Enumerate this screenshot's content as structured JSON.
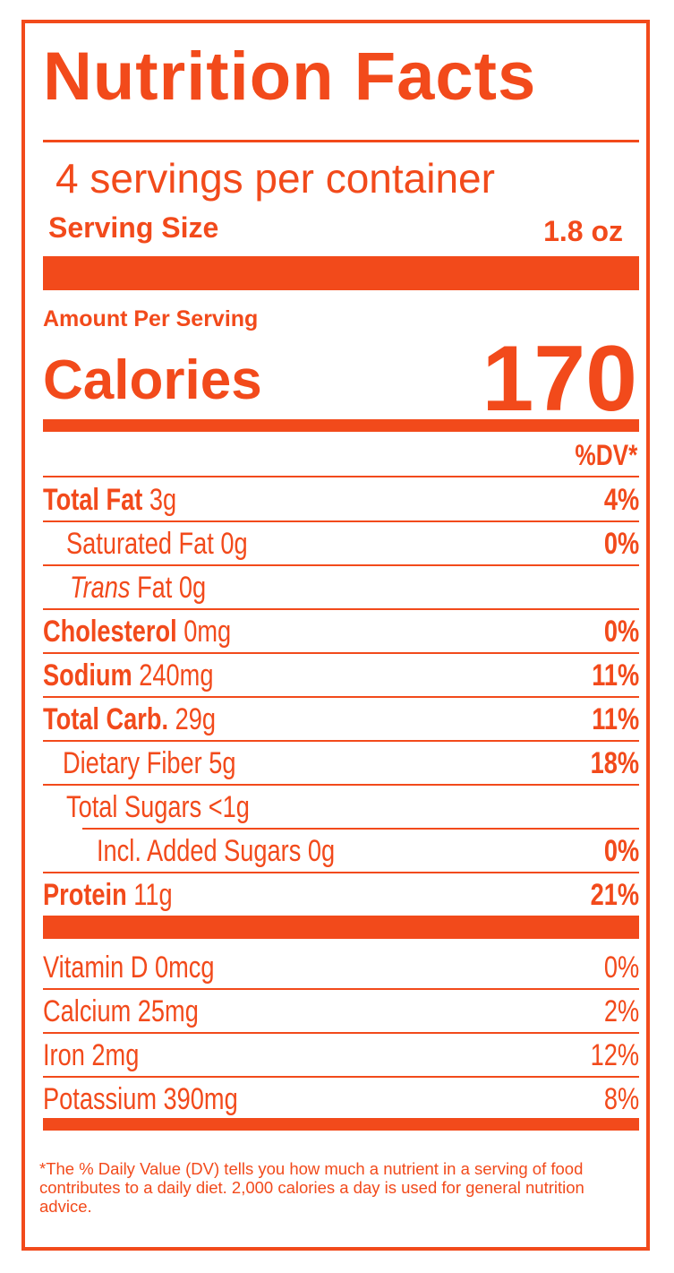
{
  "title": "Nutrition Facts",
  "servings_per_container": "4 servings per container",
  "serving_size_label": "Serving Size",
  "serving_size_value": "1.8 oz",
  "amount_per_serving": "Amount Per Serving",
  "calories_label": "Calories",
  "calories_value": "170",
  "dv_header": "%DV*",
  "nutrients": [
    {
      "bold": "Total Fat",
      "italic": "",
      "text": " 3g",
      "dv": "4%"
    },
    {
      "bold": "",
      "italic": "",
      "text": "Saturated Fat 0g",
      "dv": "0%"
    },
    {
      "bold": "",
      "italic": "Trans",
      "text": " Fat 0g",
      "dv": ""
    },
    {
      "bold": "Cholesterol",
      "italic": "",
      "text": " 0mg",
      "dv": "0%"
    },
    {
      "bold": "Sodium",
      "italic": "",
      "text": " 240mg",
      "dv": "11%"
    },
    {
      "bold": "Total Carb.",
      "italic": "",
      "text": " 29g",
      "dv": "11%"
    },
    {
      "bold": "",
      "italic": "",
      "text": "Dietary Fiber 5g",
      "dv": "18%"
    },
    {
      "bold": "",
      "italic": "",
      "text": "Total Sugars <1g",
      "dv": ""
    },
    {
      "bold": "",
      "italic": "",
      "text": "Incl. Added Sugars 0g",
      "dv": "0%"
    },
    {
      "bold": "Protein",
      "italic": "",
      "text": " 11g",
      "dv": "21%"
    }
  ],
  "vitamins": [
    {
      "text": "Vitamin D 0mcg",
      "dv": "0%"
    },
    {
      "text": "Calcium 25mg",
      "dv": "2%"
    },
    {
      "text": "Iron 2mg",
      "dv": "12%"
    },
    {
      "text": "Potassium 390mg",
      "dv": "8%"
    }
  ],
  "footnote": "*The % Daily Value (DV) tells you how much a nutrient in a serving of food contributes to a daily diet. 2,000 calories a day is used for general nutrition advice.",
  "colors": {
    "accent": "#f24a1b",
    "background": "#ffffff"
  }
}
